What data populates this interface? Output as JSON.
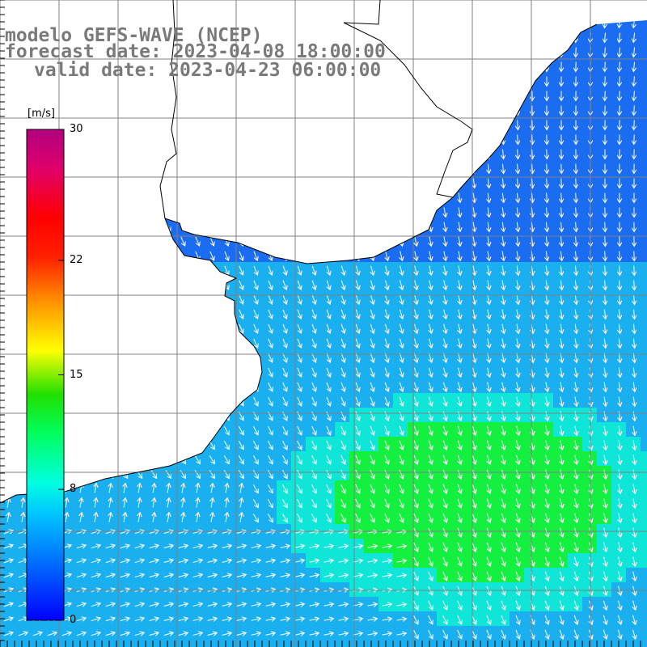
{
  "title": {
    "line1": "modelo GEFS-WAVE (NCEP)",
    "line2": "forecast date: 2023-04-08 18:00:00",
    "line3": "valid date: 2023-04-23 06:00:00"
  },
  "colorbar": {
    "unit": "[m/s]",
    "ticks": [
      {
        "value": 30,
        "label": "30"
      },
      {
        "value": 22,
        "label": "22"
      },
      {
        "value": 15,
        "label": "15"
      },
      {
        "value": 8,
        "label": "8"
      },
      {
        "value": 0,
        "label": "0"
      }
    ],
    "range": [
      0,
      30
    ],
    "colors": [
      "#0000ff",
      "#0080ff",
      "#00e0ff",
      "#00ff80",
      "#00e000",
      "#c0ff00",
      "#ffff00",
      "#ffa000",
      "#ff4000",
      "#ff0000",
      "#e0006a",
      "#b00080"
    ]
  },
  "map": {
    "grid": true,
    "land_color": "#ffffff",
    "field_colors": {
      "low": "#1a6cf0",
      "mid": "#1ab0f0",
      "high": "#10e6d8",
      "peak": "#14f040"
    },
    "arrow_color": "#ffffff"
  }
}
